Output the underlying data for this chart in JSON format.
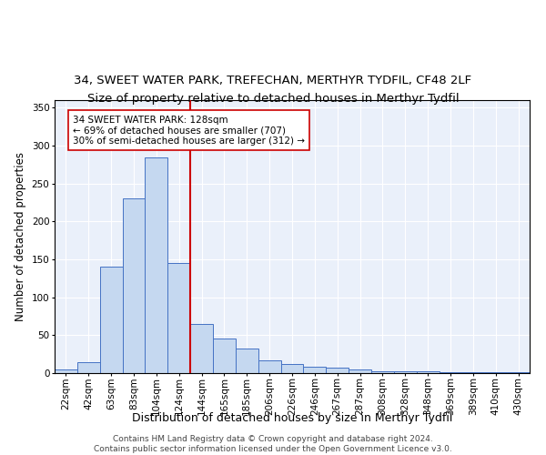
{
  "title1": "34, SWEET WATER PARK, TREFECHAN, MERTHYR TYDFIL, CF48 2LF",
  "title2": "Size of property relative to detached houses in Merthyr Tydfil",
  "xlabel": "Distribution of detached houses by size in Merthyr Tydfil",
  "ylabel": "Number of detached properties",
  "bar_labels": [
    "22sqm",
    "42sqm",
    "63sqm",
    "83sqm",
    "104sqm",
    "124sqm",
    "144sqm",
    "165sqm",
    "185sqm",
    "206sqm",
    "226sqm",
    "246sqm",
    "267sqm",
    "287sqm",
    "308sqm",
    "328sqm",
    "348sqm",
    "369sqm",
    "389sqm",
    "410sqm",
    "430sqm"
  ],
  "bar_values": [
    5,
    14,
    140,
    230,
    285,
    145,
    65,
    46,
    33,
    17,
    12,
    9,
    7,
    5,
    3,
    2,
    2,
    1,
    1,
    1,
    1
  ],
  "bar_color": "#c5d8f0",
  "bar_edge_color": "#4472c4",
  "vline_color": "#cc0000",
  "vline_x": 5.5,
  "annotation_text": "34 SWEET WATER PARK: 128sqm\n← 69% of detached houses are smaller (707)\n30% of semi-detached houses are larger (312) →",
  "annotation_box_facecolor": "#ffffff",
  "annotation_box_edgecolor": "#cc0000",
  "ylim": [
    0,
    360
  ],
  "yticks": [
    0,
    50,
    100,
    150,
    200,
    250,
    300,
    350
  ],
  "footer_text": "Contains HM Land Registry data © Crown copyright and database right 2024.\nContains public sector information licensed under the Open Government Licence v3.0.",
  "bg_color": "#eaf0fa",
  "title1_fontsize": 9.5,
  "title2_fontsize": 9.5,
  "xlabel_fontsize": 9,
  "ylabel_fontsize": 8.5,
  "tick_fontsize": 7.5,
  "annotation_fontsize": 7.5,
  "footer_fontsize": 6.5
}
